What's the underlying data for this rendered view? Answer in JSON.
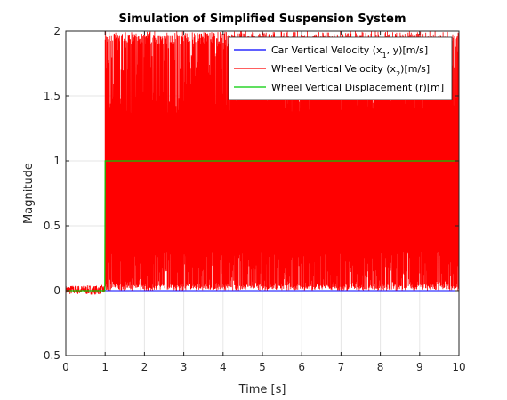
{
  "chart_data": {
    "type": "line",
    "title": "Simulation of Simplified Suspension System",
    "xlabel": "Time [s]",
    "ylabel": "Magnitude",
    "xlim": [
      0,
      10
    ],
    "ylim": [
      -0.5,
      2
    ],
    "grid": true,
    "legend_position": "top-right",
    "x_ticks": [
      "0",
      "1",
      "2",
      "3",
      "4",
      "5",
      "6",
      "7",
      "8",
      "9",
      "10"
    ],
    "y_ticks": [
      "-0.5",
      "0",
      "0.5",
      "1",
      "1.5",
      "2"
    ],
    "series": [
      {
        "name": "Car Vertical Velocity (x1, y)[m/s]",
        "legend_main": "Car Vertical Velocity (x",
        "legend_sub": "1",
        "legend_tail": ", y)[m/s]",
        "color": "#0000ff",
        "x": [
          0,
          1,
          10
        ],
        "y": [
          0,
          0,
          0
        ]
      },
      {
        "name": "Wheel Vertical Velocity (x2)[m/s]",
        "legend_main": "Wheel Vertical Velocity (x",
        "legend_sub": "2",
        "legend_tail": ")[m/s]",
        "color": "#ff0000",
        "description_values": {
          "pre_step_band": [
            -0.03,
            0.04
          ],
          "post_step_min_range": [
            0.0,
            0.05
          ],
          "post_step_max_range": [
            1.9,
            2.0
          ],
          "dense_band": [
            0.3,
            1.37
          ],
          "step_time": 1
        }
      },
      {
        "name": "Wheel Vertical Displacement (r)[m]",
        "legend_main": "Wheel Vertical Displacement (r)[m]",
        "legend_sub": "",
        "legend_tail": "",
        "color": "#00cc00",
        "x": [
          0,
          0.99,
          1.0,
          10
        ],
        "y": [
          0,
          0,
          1,
          1
        ]
      }
    ]
  }
}
